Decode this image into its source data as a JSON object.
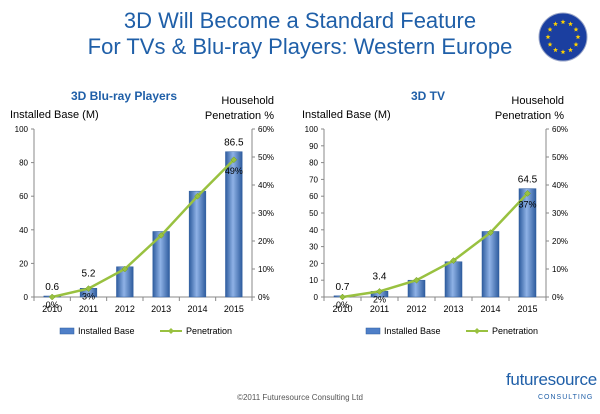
{
  "slide": {
    "title_line1": "3D Will Become a Standard Feature",
    "title_line2": "For TVs & Blu-ray Players: Western Europe",
    "footer": "©2011 Futuresource Consulting Ltd",
    "logo_text": "futuresource",
    "logo_sub": "CONSULTING",
    "colors": {
      "title": "#1f5fa8",
      "bar": "#4f7fc8",
      "bar_dark": "#2e5c9e",
      "line": "#99c140",
      "flag_blue": "#1b3fa0",
      "flag_star": "#ffd200"
    }
  },
  "chart_data": [
    {
      "type": "bar",
      "title": "3D Blu-ray Players",
      "ylabel_left": "Installed Base (M)",
      "ylabel_right_line1": "Household",
      "ylabel_right_line2": "Penetration %",
      "categories": [
        "2010",
        "2011",
        "2012",
        "2013",
        "2014",
        "2015"
      ],
      "ylim_left": [
        0,
        100
      ],
      "yticks_left": [
        "0",
        "20",
        "40",
        "60",
        "80",
        "100"
      ],
      "ylim_right": [
        0,
        60
      ],
      "yticks_right": [
        "0%",
        "10%",
        "20%",
        "30%",
        "40%",
        "50%",
        "60%"
      ],
      "series": [
        {
          "name": "Installed Base",
          "kind": "bar",
          "values": [
            0.6,
            5.2,
            18,
            39,
            63,
            86.5
          ]
        },
        {
          "name": "Penetration",
          "kind": "line",
          "axis": "right",
          "values": [
            0,
            3,
            10,
            22,
            36,
            49
          ]
        }
      ],
      "bar_labels": [
        {
          "index": 0,
          "text": "0.6"
        },
        {
          "index": 1,
          "text": "5.2"
        },
        {
          "index": 5,
          "text": "86.5"
        }
      ],
      "line_labels": [
        {
          "index": 0,
          "text": "0%"
        },
        {
          "index": 1,
          "text": "3%"
        },
        {
          "index": 5,
          "text": "49%"
        }
      ],
      "legend": [
        "Installed Base",
        "Penetration"
      ],
      "legend_position": "bottom",
      "grid": false
    },
    {
      "type": "bar",
      "title": "3D TV",
      "ylabel_left": "Installed Base (M)",
      "ylabel_right_line1": "Household",
      "ylabel_right_line2": "Penetration %",
      "categories": [
        "2010",
        "2011",
        "2012",
        "2013",
        "2014",
        "2015"
      ],
      "ylim_left": [
        0,
        100
      ],
      "yticks_left": [
        "0",
        "10",
        "20",
        "30",
        "40",
        "50",
        "60",
        "70",
        "80",
        "90",
        "100"
      ],
      "ylim_right": [
        0,
        60
      ],
      "yticks_right": [
        "0%",
        "10%",
        "20%",
        "30%",
        "40%",
        "50%",
        "60%"
      ],
      "series": [
        {
          "name": "Installed Base",
          "kind": "bar",
          "values": [
            0.7,
            3.4,
            10,
            21,
            39,
            64.5
          ]
        },
        {
          "name": "Penetration",
          "kind": "line",
          "axis": "right",
          "values": [
            0,
            2,
            6,
            13,
            23,
            37
          ]
        }
      ],
      "bar_labels": [
        {
          "index": 0,
          "text": "0.7"
        },
        {
          "index": 1,
          "text": "3.4"
        },
        {
          "index": 5,
          "text": "64.5"
        }
      ],
      "line_labels": [
        {
          "index": 0,
          "text": "0%"
        },
        {
          "index": 1,
          "text": "2%"
        },
        {
          "index": 5,
          "text": "37%"
        }
      ],
      "legend": [
        "Installed Base",
        "Penetration"
      ],
      "legend_position": "bottom",
      "grid": false
    }
  ]
}
